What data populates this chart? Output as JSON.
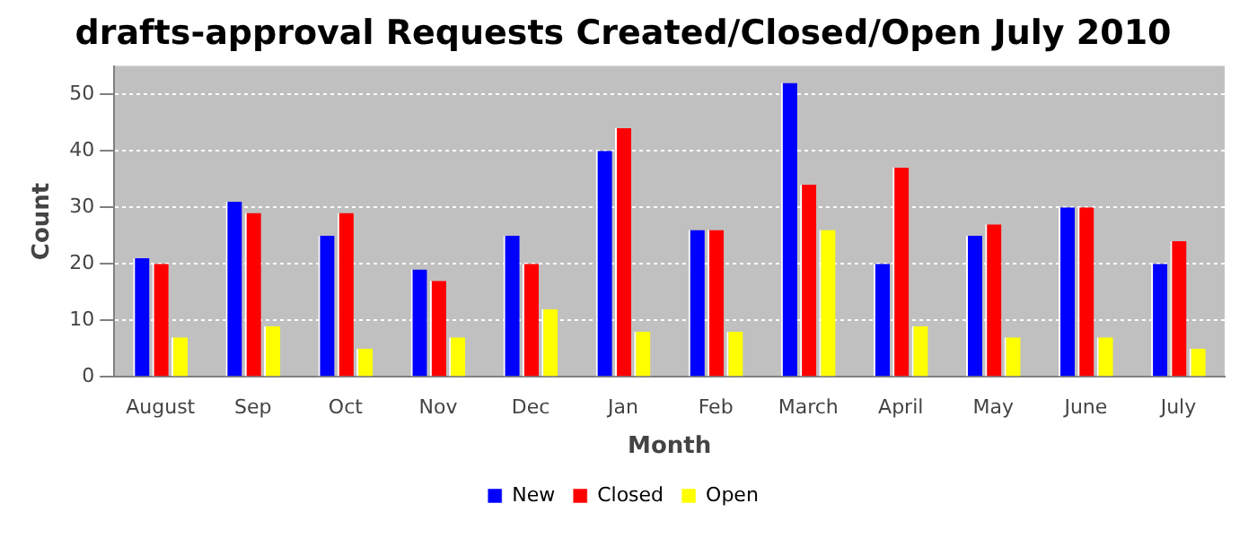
{
  "chart_data": {
    "type": "bar",
    "title": "drafts-approval Requests Created/Closed/Open July 2010",
    "xlabel": "Month",
    "ylabel": "Count",
    "categories": [
      "August",
      "Sep",
      "Oct",
      "Nov",
      "Dec",
      "Jan",
      "Feb",
      "March",
      "April",
      "May",
      "June",
      "July"
    ],
    "series": [
      {
        "name": "New",
        "color": "#0000ff",
        "values": [
          21,
          31,
          25,
          19,
          25,
          40,
          26,
          52,
          20,
          25,
          30,
          20
        ]
      },
      {
        "name": "Closed",
        "color": "#ff0000",
        "values": [
          20,
          29,
          29,
          17,
          20,
          44,
          26,
          34,
          37,
          27,
          30,
          24
        ]
      },
      {
        "name": "Open",
        "color": "#ffff00",
        "values": [
          7,
          9,
          5,
          7,
          12,
          8,
          8,
          26,
          9,
          7,
          7,
          5
        ]
      }
    ],
    "ylim": [
      0,
      55
    ],
    "yticks": [
      0,
      10,
      20,
      30,
      40,
      50
    ],
    "grid": "y",
    "legend": "bottom"
  }
}
